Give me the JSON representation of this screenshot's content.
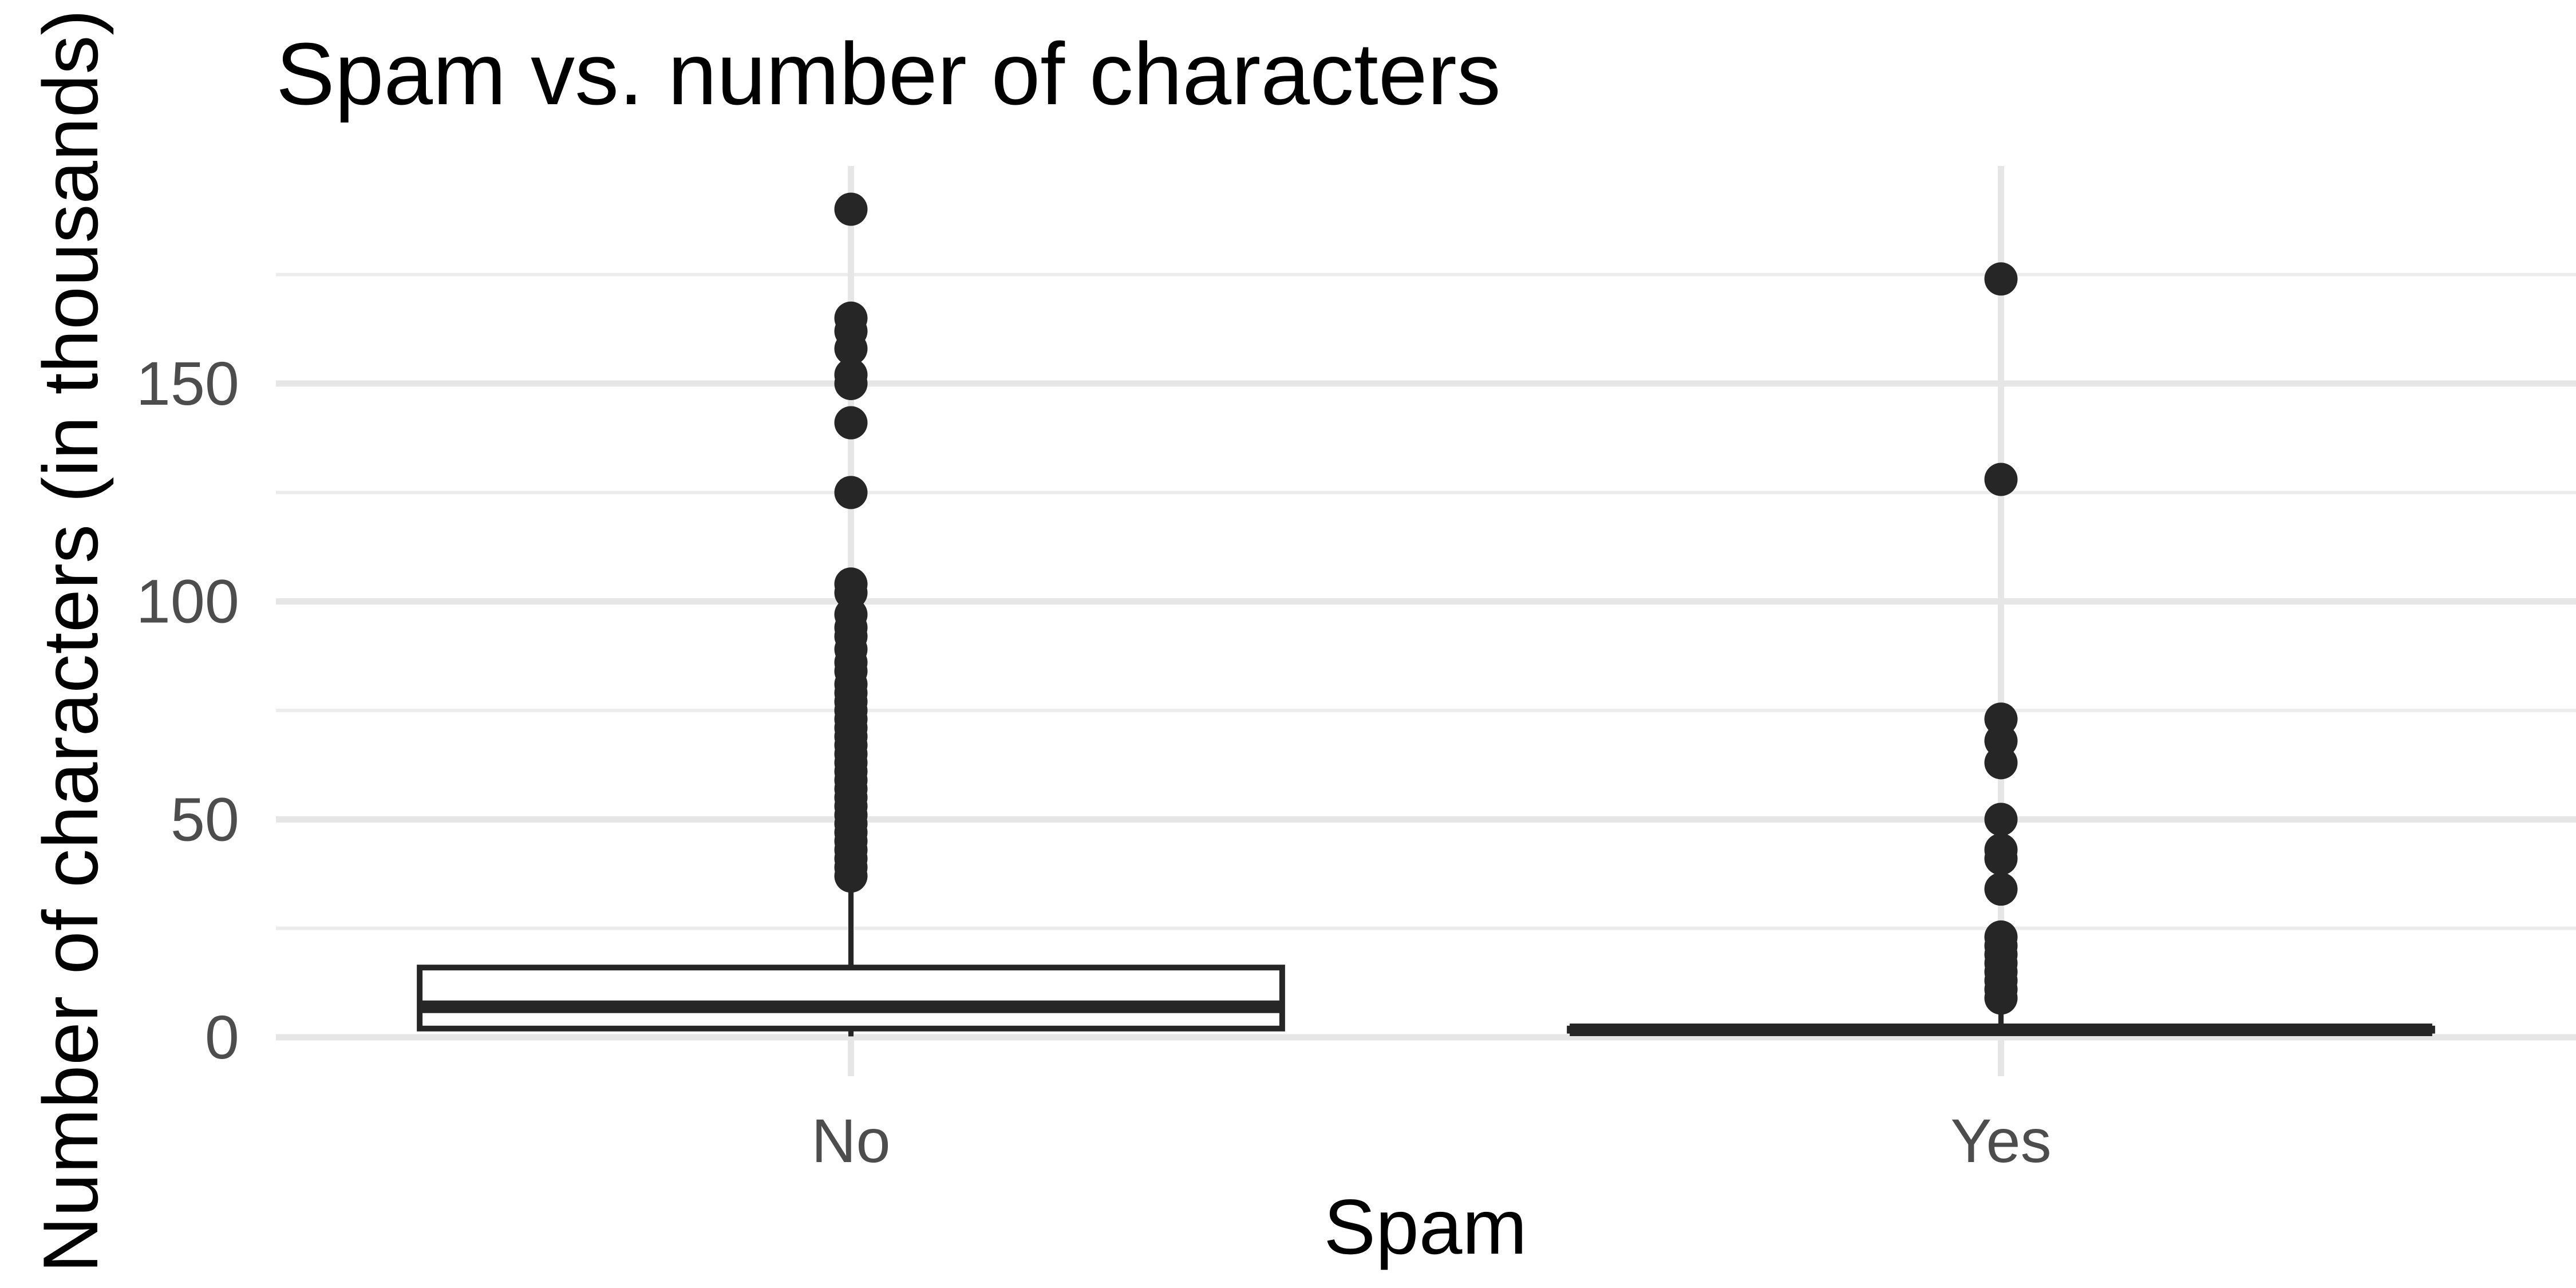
{
  "chart_data": {
    "type": "boxplot",
    "title": "Spam vs. number of characters",
    "xlabel": "Spam",
    "ylabel": "Number of characters (in thousands)",
    "categories": [
      "No",
      "Yes"
    ],
    "ylim": [
      -7,
      197
    ],
    "y_ticks": [
      0,
      50,
      100,
      150
    ],
    "y_tick_labels": [
      "0",
      "50",
      "100",
      "150"
    ],
    "grid": true,
    "legend": "none",
    "colors": {
      "box_stroke": "#262626",
      "box_fill": "#ffffff",
      "outlier": "#262626",
      "grid": "#e6e6e6",
      "tick_text": "#4d4d4d"
    },
    "boxes": [
      {
        "category": "No",
        "min": 0.2,
        "q1": 2,
        "median": 7,
        "q3": 16,
        "max": 36,
        "outliers": [
          190,
          165,
          162,
          158,
          152,
          150,
          141,
          125,
          104,
          102,
          97,
          94,
          92,
          89,
          86,
          84,
          81,
          79,
          77,
          75,
          73,
          71,
          69,
          67,
          65,
          63,
          61,
          59,
          57,
          55,
          53,
          51,
          49,
          47,
          45,
          43,
          41,
          39,
          37
        ]
      },
      {
        "category": "Yes",
        "min": 0.5,
        "q1": 1.5,
        "median": 1.7,
        "q3": 2.0,
        "max": 8,
        "outliers": [
          174,
          128,
          73,
          68,
          63,
          50,
          43,
          41,
          34,
          23,
          21,
          19,
          17,
          15,
          13,
          11,
          9
        ]
      }
    ]
  }
}
